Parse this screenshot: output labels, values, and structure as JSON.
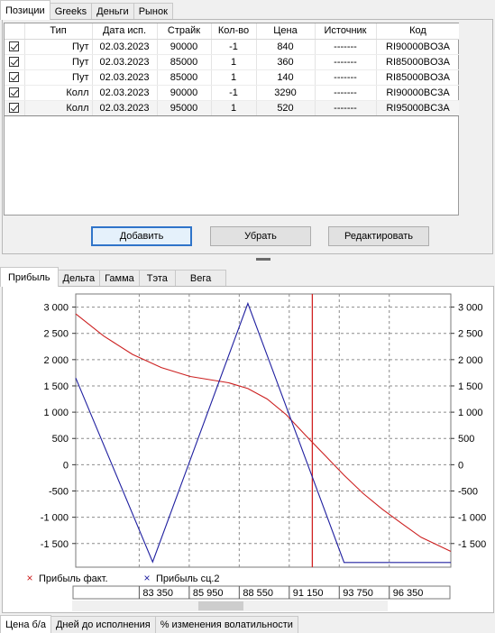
{
  "top_tabs": [
    "Позиции",
    "Greeks",
    "Деньги",
    "Рынок"
  ],
  "positions": {
    "columns": [
      "",
      "Тип",
      "Дата исп.",
      "Страйк",
      "Кол-во",
      "Цена",
      "Источник",
      "Код"
    ],
    "rows": [
      {
        "checked": true,
        "type": "Пут",
        "date": "02.03.2023",
        "strike": "90000",
        "qty": "-1",
        "price": "840",
        "source": "-------",
        "code": "RI90000BO3A"
      },
      {
        "checked": true,
        "type": "Пут",
        "date": "02.03.2023",
        "strike": "85000",
        "qty": "1",
        "price": "360",
        "source": "-------",
        "code": "RI85000BO3A"
      },
      {
        "checked": true,
        "type": "Пут",
        "date": "02.03.2023",
        "strike": "85000",
        "qty": "1",
        "price": "140",
        "source": "-------",
        "code": "RI85000BO3A"
      },
      {
        "checked": true,
        "type": "Колл",
        "date": "02.03.2023",
        "strike": "90000",
        "qty": "-1",
        "price": "3290",
        "source": "-------",
        "code": "RI90000BC3A"
      },
      {
        "checked": true,
        "type": "Колл",
        "date": "02.03.2023",
        "strike": "95000",
        "qty": "1",
        "price": "520",
        "source": "-------",
        "code": "RI95000BC3A"
      }
    ],
    "selected_row": 4
  },
  "buttons": {
    "add": "Добавить",
    "remove": "Убрать",
    "edit": "Редактировать"
  },
  "chart_tabs": [
    "Прибыль",
    "Дельта",
    "Гамма",
    "Тэта",
    "Вега"
  ],
  "footer_tabs": [
    "Цена б/а",
    "Дней до исполнения",
    "% изменения волатильности"
  ],
  "chart_data": {
    "type": "line",
    "title": "",
    "xlabel": "",
    "ylabel": "",
    "xlim": [
      80050,
      99550
    ],
    "ylim": [
      -1950,
      3250
    ],
    "x_ticks": [
      "83 350",
      "85 950",
      "88 550",
      "91 150",
      "93 750",
      "96 350"
    ],
    "x_tick_values": [
      83350,
      85950,
      88550,
      91150,
      93750,
      96350
    ],
    "y_ticks": [
      "3 000",
      "2 500",
      "2 000",
      "1 500",
      "1 000",
      "500",
      "0",
      "-500",
      "-1 000",
      "-1 500"
    ],
    "y_tick_values": [
      3000,
      2500,
      2000,
      1500,
      1000,
      500,
      0,
      -500,
      -1000,
      -1500
    ],
    "grid": true,
    "legend_position": "bottom-left",
    "current_price": 92350,
    "series": [
      {
        "name": "Прибыль факт.",
        "color": "#cc2020",
        "marker": "x",
        "x": [
          80050,
          81500,
          83000,
          84500,
          86000,
          87000,
          88000,
          89000,
          90000,
          91000,
          92000,
          93000,
          94000,
          95000,
          96000,
          97000,
          98000,
          99550
        ],
        "y": [
          2870,
          2450,
          2100,
          1850,
          1680,
          1620,
          1560,
          1450,
          1250,
          950,
          560,
          180,
          -200,
          -550,
          -850,
          -1120,
          -1380,
          -1650
        ]
      },
      {
        "name": "Прибыль сц.2",
        "color": "#2020a0",
        "marker": "x",
        "x": [
          80050,
          84050,
          89000,
          94000,
          99550
        ],
        "y": [
          1650,
          -1850,
          3070,
          -1860,
          -1860
        ]
      }
    ]
  }
}
